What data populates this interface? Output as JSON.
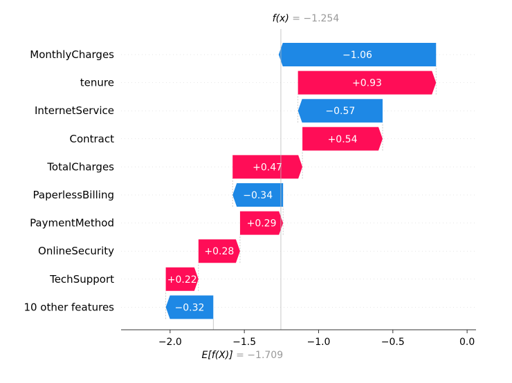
{
  "chart_data": {
    "type": "waterfall",
    "features": [
      "MonthlyCharges",
      "tenure",
      "InternetService",
      "Contract",
      "TotalCharges",
      "PaperlessBilling",
      "PaymentMethod",
      "OnlineSecurity",
      "TechSupport",
      "10 other features"
    ],
    "values": [
      -1.06,
      0.93,
      -0.57,
      0.54,
      0.47,
      -0.34,
      0.29,
      0.28,
      0.22,
      -0.32
    ],
    "value_labels": [
      "−1.06",
      "+0.93",
      "−0.57",
      "+0.54",
      "+0.47",
      "−0.34",
      "+0.29",
      "+0.28",
      "+0.22",
      "−0.32"
    ],
    "x_ticks": [
      -2.0,
      -1.5,
      -1.0,
      -0.5,
      0.0
    ],
    "x_tick_labels": [
      "−2.0",
      "−1.5",
      "−1.0",
      "−0.5",
      "0.0"
    ],
    "xlim": [
      -2.33,
      0.06
    ],
    "base_value": -1.709,
    "output_value": -1.254,
    "base_label": {
      "name": "E[f(X)]",
      "eq": " = ",
      "value": "−1.709"
    },
    "output_label": {
      "name": "f(x)",
      "eq": " = ",
      "value": "−1.254"
    },
    "colors": {
      "positive": "#ff0d57",
      "negative": "#1e88e5",
      "muted": "#999999"
    }
  }
}
